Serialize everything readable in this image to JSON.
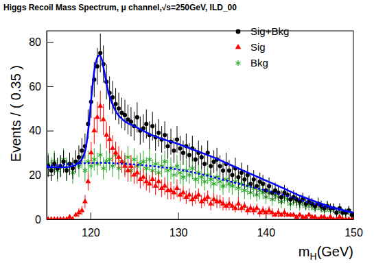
{
  "chart_data": {
    "type": "scatter",
    "title": "Higgs Recoil Mass Spectrum, μ channel,√s=250GeV, ILD_00",
    "x_label": {
      "text": "m",
      "sub": "H",
      "after": "(GeV)"
    },
    "y_label": "Events / ( 0.35 )",
    "xlim": [
      115,
      150
    ],
    "ylim": [
      0,
      85
    ],
    "xticks": [
      120,
      130,
      140,
      150
    ],
    "yticks": [
      0,
      20,
      40,
      60,
      80
    ],
    "legend": "top-right",
    "x": [
      115.175,
      115.525,
      115.875,
      116.225,
      116.575,
      116.925,
      117.275,
      117.625,
      117.975,
      118.325,
      118.675,
      119.025,
      119.375,
      119.725,
      120.075,
      120.425,
      120.775,
      121.125,
      121.475,
      121.825,
      122.175,
      122.525,
      122.875,
      123.225,
      123.575,
      123.925,
      124.275,
      124.625,
      124.975,
      125.325,
      125.675,
      126.025,
      126.375,
      126.725,
      127.075,
      127.425,
      127.775,
      128.125,
      128.475,
      128.825,
      129.175,
      129.525,
      129.875,
      130.225,
      130.575,
      130.925,
      131.275,
      131.625,
      131.975,
      132.325,
      132.675,
      133.025,
      133.375,
      133.725,
      134.075,
      134.425,
      134.775,
      135.125,
      135.475,
      135.825,
      136.175,
      136.525,
      136.875,
      137.225,
      137.575,
      137.925,
      138.275,
      138.625,
      138.975,
      139.325,
      139.675,
      140.025,
      140.375,
      140.725,
      141.075,
      141.425,
      141.775,
      142.125,
      142.475,
      142.825,
      143.175,
      143.525,
      143.875,
      144.225,
      144.575,
      144.925,
      145.275,
      145.625,
      145.975,
      146.325,
      146.675,
      147.025,
      147.375,
      147.725,
      148.075,
      148.425,
      148.775,
      149.125,
      149.475,
      149.825
    ],
    "series": [
      {
        "name": "Sig+Bkg",
        "color": "#000000",
        "marker": "circle",
        "values": [
          24,
          22,
          25,
          23,
          24,
          26,
          22,
          25,
          23,
          26,
          28,
          31,
          33,
          43,
          53,
          63,
          69,
          75,
          70,
          62,
          57,
          55,
          52,
          50,
          48,
          47,
          45,
          44,
          42,
          46,
          40,
          41,
          43,
          38,
          42,
          37,
          39,
          36,
          38,
          33,
          35,
          31,
          36,
          32,
          30,
          33,
          29,
          32,
          27,
          30,
          28,
          25,
          30,
          24,
          26,
          27,
          24,
          22,
          25,
          22,
          20,
          23,
          19,
          21,
          18,
          20,
          16,
          18,
          15,
          17,
          16,
          13,
          15,
          12,
          13,
          12,
          10,
          12,
          11,
          9,
          10,
          9,
          8,
          9,
          7,
          8,
          7,
          6,
          7,
          6,
          5,
          6,
          5,
          5,
          3,
          5,
          3,
          3,
          4,
          2
        ],
        "errors": [
          4.9,
          4.7,
          5,
          4.8,
          4.9,
          5.1,
          4.7,
          5,
          4.8,
          5.1,
          5.3,
          5.6,
          5.7,
          6.6,
          7.3,
          7.9,
          8.3,
          8.7,
          8.4,
          7.9,
          7.5,
          7.4,
          7.2,
          7.1,
          6.9,
          6.9,
          6.7,
          6.6,
          6.5,
          6.8,
          6.3,
          6.4,
          6.6,
          6.2,
          6.5,
          6.1,
          6.2,
          6,
          6.2,
          5.7,
          5.9,
          5.6,
          6,
          5.7,
          5.5,
          5.7,
          5.4,
          5.7,
          5.2,
          5.5,
          5.3,
          5,
          5.5,
          4.9,
          5.1,
          5.2,
          4.9,
          4.7,
          5,
          4.7,
          4.5,
          4.8,
          4.4,
          4.6,
          4.2,
          4.5,
          4,
          4.2,
          3.9,
          4.1,
          4,
          3.6,
          3.9,
          3.5,
          3.6,
          3.5,
          3.2,
          3.5,
          3.3,
          3,
          3.2,
          3,
          2.8,
          3,
          2.6,
          2.8,
          2.6,
          2.4,
          2.6,
          2.4,
          2.2,
          2.4,
          2.2,
          2.2,
          1.7,
          2.2,
          1.7,
          1.7,
          2,
          1.4
        ]
      },
      {
        "name": "Sig",
        "color": "#ff0000",
        "marker": "triangle",
        "values": [
          0,
          0,
          0,
          0,
          0,
          0,
          0,
          1,
          0,
          2,
          3,
          4,
          8,
          17,
          30,
          40,
          46,
          51,
          45,
          38,
          36,
          32,
          30,
          28,
          26,
          24,
          22,
          24,
          20,
          21,
          18,
          19,
          17,
          16,
          18,
          15,
          17,
          14,
          15,
          13,
          13,
          12,
          14,
          11,
          12,
          10,
          11,
          9,
          10,
          11,
          8,
          9,
          10,
          7,
          9,
          8,
          8,
          7,
          6,
          7,
          6,
          5,
          7,
          5,
          6,
          4,
          5,
          4,
          5,
          3,
          4,
          3,
          4,
          3,
          2,
          3,
          2,
          3,
          2,
          2,
          2,
          1,
          2,
          1,
          1,
          2,
          1,
          1,
          0,
          1,
          1,
          0,
          1,
          0,
          0,
          1,
          0,
          0,
          0,
          0
        ],
        "errors": [
          0,
          0,
          0,
          0,
          0,
          0,
          0,
          1,
          0,
          1,
          2,
          2,
          3,
          4,
          5,
          6,
          7,
          7,
          7,
          6,
          6,
          6,
          5,
          5,
          5,
          5,
          5,
          5,
          4,
          5,
          4,
          4,
          4,
          4,
          4,
          4,
          4,
          4,
          4,
          4,
          4,
          3,
          4,
          3,
          3,
          3,
          3,
          3,
          3,
          3,
          3,
          3,
          3,
          3,
          3,
          3,
          3,
          3,
          2,
          3,
          2,
          2,
          3,
          2,
          2,
          2,
          2,
          2,
          2,
          2,
          2,
          2,
          2,
          2,
          1,
          2,
          1,
          2,
          1,
          1,
          1,
          1,
          1,
          1,
          1,
          1,
          1,
          1,
          0,
          1,
          1,
          0,
          1,
          0,
          0,
          1,
          0,
          0,
          0,
          0
        ]
      },
      {
        "name": "Bkg",
        "color": "#22aa22",
        "marker": "asterisk",
        "values": [
          25,
          23,
          26,
          22,
          24,
          27,
          23,
          25,
          21,
          26,
          24,
          28,
          22,
          26,
          24,
          27,
          25,
          29,
          23,
          26,
          27,
          24,
          29,
          23,
          26,
          25,
          28,
          22,
          27,
          24,
          25,
          26,
          23,
          27,
          22,
          25,
          21,
          24,
          26,
          22,
          23,
          20,
          24,
          21,
          19,
          22,
          20,
          23,
          18,
          21,
          19,
          17,
          20,
          18,
          16,
          19,
          17,
          15,
          18,
          16,
          15,
          17,
          14,
          16,
          13,
          15,
          12,
          14,
          11,
          13,
          12,
          10,
          12,
          9,
          11,
          10,
          8,
          10,
          9,
          7,
          9,
          8,
          7,
          8,
          6,
          7,
          6,
          5,
          7,
          5,
          4,
          6,
          4,
          5,
          3,
          4,
          3,
          3,
          4,
          2
        ],
        "errors": [
          5,
          5,
          5,
          5,
          5,
          5,
          5,
          5,
          5,
          5,
          5,
          5,
          5,
          5,
          5,
          5,
          5,
          5,
          5,
          5,
          5,
          5,
          5,
          5,
          5,
          5,
          5,
          5,
          5,
          5,
          5,
          5,
          5,
          5,
          5,
          5,
          5,
          5,
          5,
          5,
          5,
          4,
          5,
          5,
          4,
          5,
          4,
          5,
          4,
          5,
          4,
          4,
          4,
          4,
          4,
          4,
          4,
          4,
          4,
          4,
          4,
          4,
          4,
          4,
          4,
          4,
          3,
          4,
          3,
          4,
          3,
          3,
          3,
          3,
          3,
          3,
          3,
          3,
          3,
          3,
          3,
          3,
          3,
          3,
          2,
          3,
          2,
          2,
          3,
          2,
          2,
          2,
          2,
          2,
          2,
          2,
          2,
          2,
          2,
          1
        ]
      }
    ],
    "curves": [
      {
        "color": "#0000ff",
        "line_style": "solid",
        "x": [
          115,
          117,
          118,
          118.5,
          119,
          119.5,
          119.8,
          120.1,
          120.4,
          120.7,
          121,
          121.3,
          121.6,
          122,
          122.5,
          123,
          124,
          125,
          126,
          127,
          128,
          130,
          132,
          134,
          136,
          138,
          140,
          142,
          144,
          146,
          148,
          150
        ],
        "values": [
          23.5,
          23.5,
          24,
          25,
          27,
          33,
          42,
          55,
          66,
          72,
          74,
          72,
          66,
          58,
          52,
          48,
          44,
          42,
          40,
          38,
          36.5,
          34,
          31,
          28,
          24.5,
          21,
          17.5,
          14,
          10.5,
          7.5,
          5,
          3
        ]
      },
      {
        "color": "#0000ff",
        "line_style": "dotted",
        "x": [
          115,
          118,
          121,
          124,
          127,
          130,
          133,
          136,
          139,
          142,
          145,
          148,
          150
        ],
        "values": [
          24,
          25,
          25.5,
          25,
          24,
          22.5,
          20,
          17,
          14,
          11,
          7.5,
          4.5,
          3
        ]
      }
    ]
  }
}
